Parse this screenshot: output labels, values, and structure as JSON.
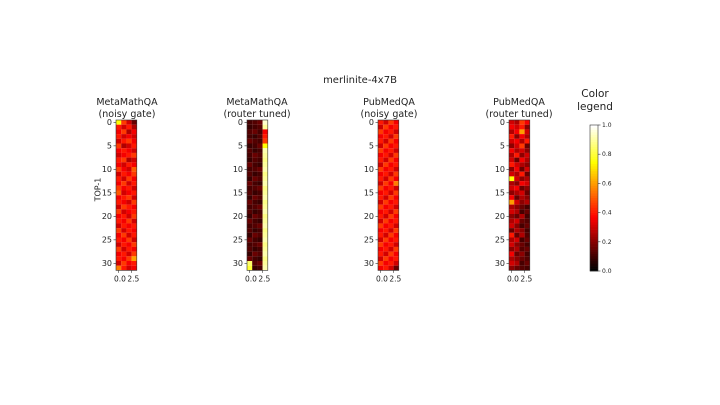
{
  "figure": {
    "suptitle": "merlinite-4x7B",
    "ylabel": "TOP-1",
    "legend_title": "Color legend"
  },
  "chart_data": {
    "type": "heatmap",
    "title": "merlinite-4x7B",
    "ylabel": "TOP-1",
    "colormap": "hot",
    "colorbar": {
      "label": "Color legend",
      "range": [
        0.0,
        1.0
      ],
      "ticks": [
        "0.0",
        "0.2",
        "0.4",
        "0.6",
        "0.8",
        "1.0"
      ]
    },
    "y_ticks": [
      "0",
      "5",
      "10",
      "15",
      "20",
      "25",
      "30"
    ],
    "x_ticks": [
      "0.0",
      "2.5"
    ],
    "rows": 32,
    "cols": 4,
    "panels": [
      {
        "title_line1": "MetaMathQA",
        "title_line2": "(noisy gate)",
        "values": [
          [
            0.75,
            0.45,
            0.3,
            0.15
          ],
          [
            0.4,
            0.3,
            0.4,
            0.25
          ],
          [
            0.35,
            0.45,
            0.25,
            0.35
          ],
          [
            0.4,
            0.3,
            0.35,
            0.3
          ],
          [
            0.3,
            0.4,
            0.45,
            0.35
          ],
          [
            0.45,
            0.25,
            0.3,
            0.4
          ],
          [
            0.35,
            0.4,
            0.35,
            0.3
          ],
          [
            0.3,
            0.35,
            0.4,
            0.45
          ],
          [
            0.4,
            0.45,
            0.25,
            0.3
          ],
          [
            0.35,
            0.3,
            0.4,
            0.35
          ],
          [
            0.45,
            0.35,
            0.3,
            0.5
          ],
          [
            0.3,
            0.4,
            0.35,
            0.45
          ],
          [
            0.4,
            0.3,
            0.45,
            0.35
          ],
          [
            0.35,
            0.45,
            0.3,
            0.4
          ],
          [
            0.45,
            0.35,
            0.4,
            0.3
          ],
          [
            0.5,
            0.3,
            0.35,
            0.4
          ],
          [
            0.35,
            0.4,
            0.45,
            0.3
          ],
          [
            0.4,
            0.35,
            0.3,
            0.45
          ],
          [
            0.3,
            0.45,
            0.4,
            0.35
          ],
          [
            0.45,
            0.3,
            0.35,
            0.4
          ],
          [
            0.35,
            0.4,
            0.3,
            0.45
          ],
          [
            0.4,
            0.35,
            0.45,
            0.3
          ],
          [
            0.3,
            0.4,
            0.35,
            0.4
          ],
          [
            0.45,
            0.3,
            0.4,
            0.35
          ],
          [
            0.35,
            0.45,
            0.3,
            0.4
          ],
          [
            0.4,
            0.35,
            0.45,
            0.3
          ],
          [
            0.3,
            0.4,
            0.35,
            0.45
          ],
          [
            0.45,
            0.3,
            0.4,
            0.35
          ],
          [
            0.35,
            0.4,
            0.3,
            0.45
          ],
          [
            0.4,
            0.35,
            0.45,
            0.6
          ],
          [
            0.3,
            0.45,
            0.35,
            0.4
          ],
          [
            0.55,
            0.4,
            0.3,
            0.35
          ]
        ]
      },
      {
        "title_line1": "MetaMathQA",
        "title_line2": "(router tuned)",
        "values": [
          [
            0.1,
            0.12,
            0.15,
            0.95
          ],
          [
            0.08,
            0.1,
            0.12,
            0.9
          ],
          [
            0.12,
            0.15,
            0.1,
            0.35
          ],
          [
            0.1,
            0.08,
            0.12,
            0.4
          ],
          [
            0.15,
            0.12,
            0.1,
            0.45
          ],
          [
            0.08,
            0.1,
            0.15,
            0.75
          ],
          [
            0.12,
            0.08,
            0.1,
            0.92
          ],
          [
            0.1,
            0.15,
            0.12,
            0.9
          ],
          [
            0.08,
            0.12,
            0.1,
            0.88
          ],
          [
            0.15,
            0.1,
            0.08,
            0.9
          ],
          [
            0.1,
            0.12,
            0.15,
            0.92
          ],
          [
            0.12,
            0.08,
            0.1,
            0.88
          ],
          [
            0.08,
            0.15,
            0.12,
            0.9
          ],
          [
            0.15,
            0.1,
            0.08,
            0.92
          ],
          [
            0.1,
            0.12,
            0.15,
            0.88
          ],
          [
            0.12,
            0.08,
            0.1,
            0.9
          ],
          [
            0.08,
            0.15,
            0.12,
            0.92
          ],
          [
            0.15,
            0.1,
            0.08,
            0.88
          ],
          [
            0.1,
            0.12,
            0.15,
            0.9
          ],
          [
            0.12,
            0.08,
            0.1,
            0.92
          ],
          [
            0.08,
            0.15,
            0.12,
            0.88
          ],
          [
            0.15,
            0.1,
            0.08,
            0.9
          ],
          [
            0.1,
            0.12,
            0.15,
            0.92
          ],
          [
            0.12,
            0.08,
            0.1,
            0.88
          ],
          [
            0.08,
            0.15,
            0.12,
            0.9
          ],
          [
            0.15,
            0.1,
            0.08,
            0.92
          ],
          [
            0.1,
            0.12,
            0.15,
            0.88
          ],
          [
            0.12,
            0.08,
            0.1,
            0.9
          ],
          [
            0.08,
            0.15,
            0.12,
            0.92
          ],
          [
            0.15,
            0.1,
            0.08,
            0.88
          ],
          [
            0.85,
            0.12,
            0.15,
            0.9
          ],
          [
            0.8,
            0.08,
            0.1,
            0.92
          ]
        ]
      },
      {
        "title_line1": "PubMedQA",
        "title_line2": "(noisy gate)",
        "values": [
          [
            0.4,
            0.3,
            0.45,
            0.35
          ],
          [
            0.3,
            0.45,
            0.35,
            0.4
          ],
          [
            0.45,
            0.35,
            0.4,
            0.3
          ],
          [
            0.35,
            0.4,
            0.3,
            0.45
          ],
          [
            0.4,
            0.3,
            0.45,
            0.35
          ],
          [
            0.3,
            0.45,
            0.35,
            0.4
          ],
          [
            0.45,
            0.35,
            0.4,
            0.3
          ],
          [
            0.35,
            0.4,
            0.3,
            0.45
          ],
          [
            0.4,
            0.3,
            0.45,
            0.35
          ],
          [
            0.3,
            0.45,
            0.35,
            0.4
          ],
          [
            0.45,
            0.35,
            0.4,
            0.3
          ],
          [
            0.35,
            0.4,
            0.3,
            0.45
          ],
          [
            0.4,
            0.3,
            0.45,
            0.35
          ],
          [
            0.3,
            0.45,
            0.35,
            0.55
          ],
          [
            0.45,
            0.35,
            0.4,
            0.3
          ],
          [
            0.35,
            0.4,
            0.3,
            0.45
          ],
          [
            0.4,
            0.3,
            0.45,
            0.35
          ],
          [
            0.3,
            0.45,
            0.35,
            0.4
          ],
          [
            0.45,
            0.35,
            0.4,
            0.3
          ],
          [
            0.35,
            0.4,
            0.3,
            0.45
          ],
          [
            0.4,
            0.3,
            0.45,
            0.35
          ],
          [
            0.3,
            0.45,
            0.35,
            0.4
          ],
          [
            0.45,
            0.35,
            0.4,
            0.3
          ],
          [
            0.35,
            0.4,
            0.3,
            0.45
          ],
          [
            0.4,
            0.3,
            0.45,
            0.35
          ],
          [
            0.3,
            0.45,
            0.35,
            0.4
          ],
          [
            0.45,
            0.35,
            0.4,
            0.3
          ],
          [
            0.35,
            0.4,
            0.3,
            0.45
          ],
          [
            0.4,
            0.3,
            0.45,
            0.35
          ],
          [
            0.3,
            0.45,
            0.35,
            0.4
          ],
          [
            0.45,
            0.35,
            0.4,
            0.3
          ],
          [
            0.35,
            0.4,
            0.3,
            0.15
          ]
        ]
      },
      {
        "title_line1": "PubMedQA",
        "title_line2": "(router tuned)",
        "values": [
          [
            0.3,
            0.25,
            0.45,
            0.35
          ],
          [
            0.35,
            0.3,
            0.4,
            0.2
          ],
          [
            0.25,
            0.35,
            0.6,
            0.3
          ],
          [
            0.4,
            0.2,
            0.35,
            0.25
          ],
          [
            0.3,
            0.35,
            0.25,
            0.4
          ],
          [
            0.2,
            0.3,
            0.45,
            0.15
          ],
          [
            0.35,
            0.25,
            0.3,
            0.2
          ],
          [
            0.25,
            0.4,
            0.2,
            0.3
          ],
          [
            0.3,
            0.15,
            0.35,
            0.25
          ],
          [
            0.4,
            0.3,
            0.25,
            0.2
          ],
          [
            0.2,
            0.35,
            0.15,
            0.3
          ],
          [
            0.3,
            0.25,
            0.4,
            0.15
          ],
          [
            0.75,
            0.3,
            0.2,
            0.25
          ],
          [
            0.25,
            0.2,
            0.35,
            0.3
          ],
          [
            0.3,
            0.35,
            0.15,
            0.2
          ],
          [
            0.2,
            0.25,
            0.3,
            0.15
          ],
          [
            0.35,
            0.15,
            0.25,
            0.2
          ],
          [
            0.6,
            0.3,
            0.2,
            0.25
          ],
          [
            0.25,
            0.2,
            0.15,
            0.1
          ],
          [
            0.3,
            0.25,
            0.1,
            0.15
          ],
          [
            0.2,
            0.15,
            0.25,
            0.1
          ],
          [
            0.25,
            0.3,
            0.15,
            0.12
          ],
          [
            0.3,
            0.2,
            0.1,
            0.15
          ],
          [
            0.15,
            0.25,
            0.2,
            0.1
          ],
          [
            0.4,
            0.15,
            0.25,
            0.12
          ],
          [
            0.25,
            0.3,
            0.1,
            0.15
          ],
          [
            0.3,
            0.2,
            0.15,
            0.1
          ],
          [
            0.2,
            0.25,
            0.12,
            0.15
          ],
          [
            0.35,
            0.15,
            0.2,
            0.1
          ],
          [
            0.25,
            0.2,
            0.15,
            0.12
          ],
          [
            0.3,
            0.25,
            0.1,
            0.15
          ],
          [
            0.2,
            0.15,
            0.12,
            0.1
          ]
        ]
      }
    ]
  }
}
